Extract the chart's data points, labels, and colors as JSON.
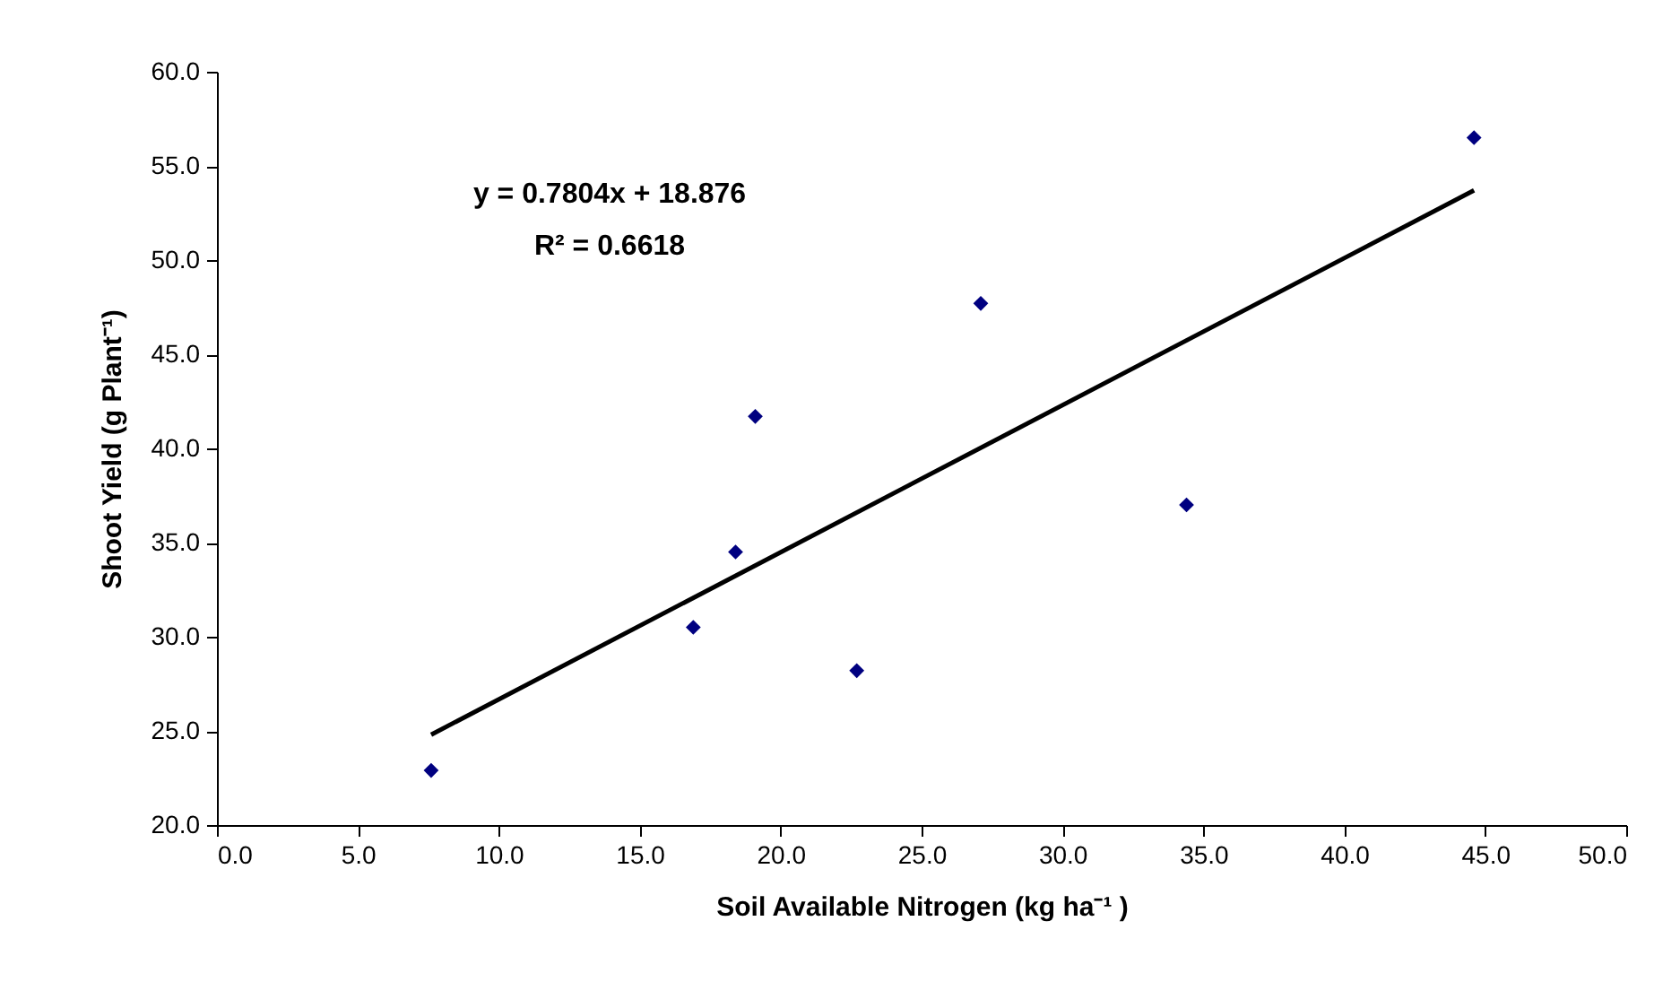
{
  "chart_data": {
    "type": "scatter",
    "xlabel": "Soil Available Nitrogen (kg ha⁻¹ )",
    "ylabel": "Shoot Yield (g Plant⁻¹)",
    "xlim": [
      0,
      50
    ],
    "ylim": [
      20,
      60
    ],
    "xticks": [
      {
        "value": 0,
        "label": "0.0"
      },
      {
        "value": 5,
        "label": "5.0"
      },
      {
        "value": 10,
        "label": "10.0"
      },
      {
        "value": 15,
        "label": "15.0"
      },
      {
        "value": 20,
        "label": "20.0"
      },
      {
        "value": 25,
        "label": "25.0"
      },
      {
        "value": 30,
        "label": "30.0"
      },
      {
        "value": 35,
        "label": "35.0"
      },
      {
        "value": 40,
        "label": "40.0"
      },
      {
        "value": 45,
        "label": "45.0"
      },
      {
        "value": 50,
        "label": "50.0"
      }
    ],
    "yticks": [
      {
        "value": 20,
        "label": "20.0"
      },
      {
        "value": 25,
        "label": "25.0"
      },
      {
        "value": 30,
        "label": "30.0"
      },
      {
        "value": 35,
        "label": "35.0"
      },
      {
        "value": 40,
        "label": "40.0"
      },
      {
        "value": 45,
        "label": "45.0"
      },
      {
        "value": 50,
        "label": "50.0"
      },
      {
        "value": 55,
        "label": "55.0"
      },
      {
        "value": 60,
        "label": "60.0"
      }
    ],
    "marker": "diamond",
    "grid": false,
    "series": [
      {
        "color": "#000080",
        "x": [
          7.6,
          16.9,
          18.4,
          19.1,
          22.7,
          27.1,
          34.4,
          44.6
        ],
        "values": [
          22.9,
          30.5,
          34.5,
          41.7,
          28.2,
          47.7,
          37.0,
          56.5
        ]
      },
      {
        "type": "line",
        "color": "#000000",
        "line_style": "solid",
        "marker": "none",
        "x": [
          7.6,
          44.6
        ],
        "values": [
          24.8,
          53.7
        ]
      }
    ],
    "annotations": [
      "y = 0.7804x + 18.876",
      "R² = 0.6618"
    ]
  }
}
